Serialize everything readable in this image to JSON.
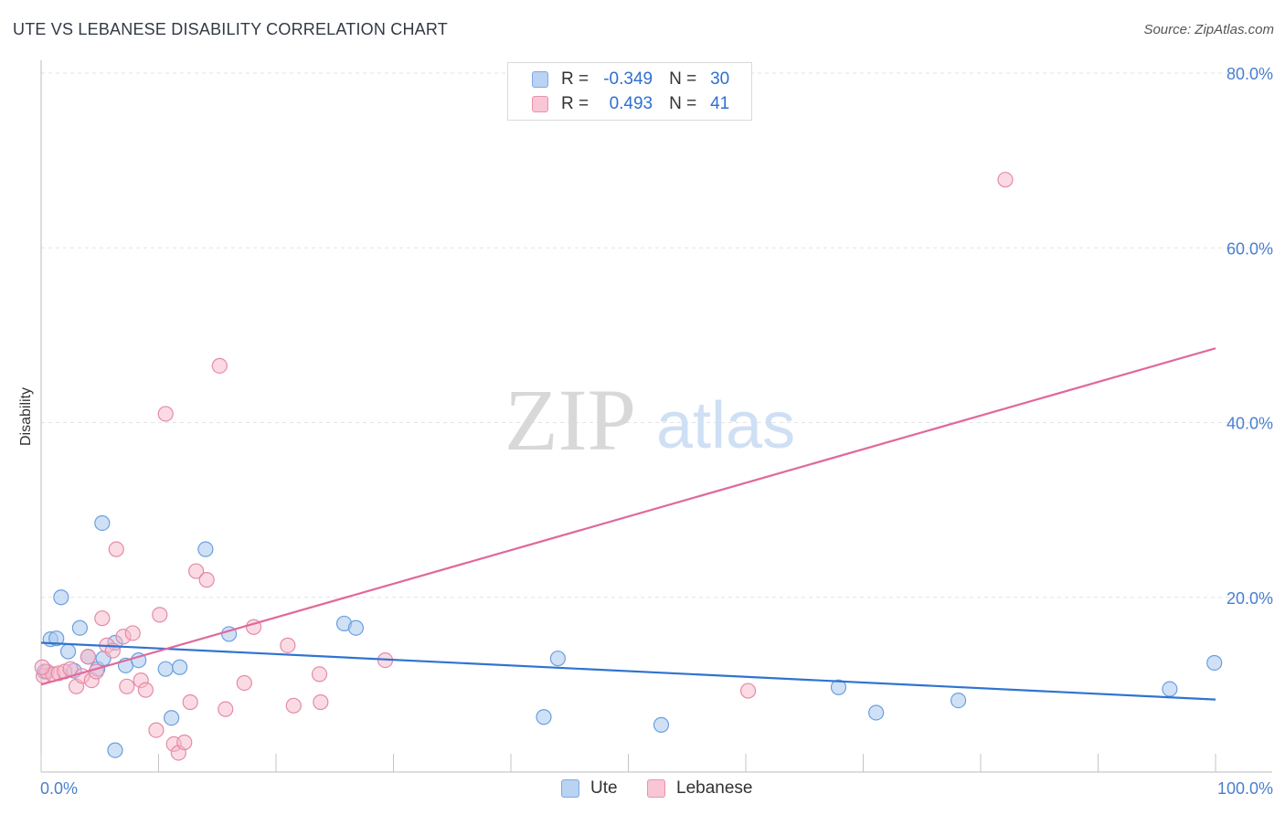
{
  "title": "UTE VS LEBANESE DISABILITY CORRELATION CHART",
  "source": "Source: ZipAtlas.com",
  "legend": {
    "r_label": "R =",
    "n_label": "N =",
    "rows": [
      {
        "name": "Ute",
        "r": "-0.349",
        "n": "30"
      },
      {
        "name": "Lebanese",
        "r": "0.493",
        "n": "41"
      }
    ]
  },
  "bottom_legend": [
    "Ute",
    "Lebanese"
  ],
  "watermark": {
    "zip": "ZIP",
    "atlas": "atlas"
  },
  "colors": {
    "ute_fill": "#a9c8ef",
    "ute_stroke": "#6b9fe0",
    "ute_line": "#2f74d0",
    "leb_fill": "#f6b7ca",
    "leb_stroke": "#e68aa7",
    "leb_line": "#e0689a",
    "tick": "#4a7fcf",
    "grid": "#e3e3e3"
  },
  "chart_data": {
    "type": "scatter",
    "title": "UTE VS LEBANESE DISABILITY CORRELATION CHART",
    "xlabel": "",
    "ylabel": "Disability",
    "xlim": [
      0,
      100
    ],
    "ylim": [
      0,
      80
    ],
    "y_ticks": [
      {
        "value": 20,
        "label": "20.0%"
      },
      {
        "value": 40,
        "label": "40.0%"
      },
      {
        "value": 60,
        "label": "60.0%"
      },
      {
        "value": 80,
        "label": "80.0%"
      }
    ],
    "x_tick_labels": [
      {
        "value": 0,
        "label": "0.0%"
      },
      {
        "value": 100,
        "label": "100.0%"
      }
    ],
    "series": [
      {
        "name": "Ute",
        "points": [
          [
            0.3,
            11.5
          ],
          [
            0.8,
            15.2
          ],
          [
            1.3,
            15.3
          ],
          [
            1.7,
            20.0
          ],
          [
            2.3,
            13.8
          ],
          [
            2.8,
            11.6
          ],
          [
            3.3,
            16.5
          ],
          [
            4.0,
            13.2
          ],
          [
            4.8,
            11.8
          ],
          [
            5.3,
            13.0
          ],
          [
            5.2,
            28.5
          ],
          [
            6.3,
            14.8
          ],
          [
            7.2,
            12.2
          ],
          [
            8.3,
            12.8
          ],
          [
            6.3,
            2.5
          ],
          [
            10.6,
            11.8
          ],
          [
            11.8,
            12.0
          ],
          [
            11.1,
            6.2
          ],
          [
            14.0,
            25.5
          ],
          [
            16.0,
            15.8
          ],
          [
            25.8,
            17.0
          ],
          [
            26.8,
            16.5
          ],
          [
            42.8,
            6.3
          ],
          [
            44.0,
            13.0
          ],
          [
            52.8,
            5.4
          ],
          [
            67.9,
            9.7
          ],
          [
            71.1,
            6.8
          ],
          [
            78.1,
            8.2
          ],
          [
            96.1,
            9.5
          ],
          [
            99.9,
            12.5
          ]
        ]
      },
      {
        "name": "Lebanese",
        "points": [
          [
            0.2,
            11.0
          ],
          [
            0.5,
            11.5
          ],
          [
            1.0,
            11.2
          ],
          [
            1.5,
            11.3
          ],
          [
            2.0,
            11.5
          ],
          [
            2.5,
            11.8
          ],
          [
            3.0,
            9.8
          ],
          [
            3.5,
            11.0
          ],
          [
            4.0,
            13.2
          ],
          [
            4.3,
            10.5
          ],
          [
            4.7,
            11.5
          ],
          [
            5.2,
            17.6
          ],
          [
            5.6,
            14.5
          ],
          [
            6.1,
            13.9
          ],
          [
            6.4,
            25.5
          ],
          [
            7.0,
            15.5
          ],
          [
            7.3,
            9.8
          ],
          [
            7.8,
            15.9
          ],
          [
            8.5,
            10.5
          ],
          [
            8.9,
            9.4
          ],
          [
            9.8,
            4.8
          ],
          [
            10.1,
            18.0
          ],
          [
            10.6,
            41.0
          ],
          [
            11.3,
            3.2
          ],
          [
            11.7,
            2.2
          ],
          [
            12.2,
            3.4
          ],
          [
            12.7,
            8.0
          ],
          [
            13.2,
            23.0
          ],
          [
            14.1,
            22.0
          ],
          [
            15.2,
            46.5
          ],
          [
            15.7,
            7.2
          ],
          [
            17.3,
            10.2
          ],
          [
            18.1,
            16.6
          ],
          [
            21.0,
            14.5
          ],
          [
            21.5,
            7.6
          ],
          [
            23.7,
            11.2
          ],
          [
            23.8,
            8.0
          ],
          [
            29.3,
            12.8
          ],
          [
            60.2,
            9.3
          ],
          [
            82.1,
            67.8
          ],
          [
            0.1,
            12.0
          ]
        ]
      }
    ],
    "trendlines": [
      {
        "name": "Ute",
        "x": [
          0,
          100
        ],
        "y": [
          14.8,
          8.3
        ]
      },
      {
        "name": "Lebanese",
        "x": [
          0,
          100
        ],
        "y": [
          10.0,
          48.5
        ]
      }
    ]
  }
}
